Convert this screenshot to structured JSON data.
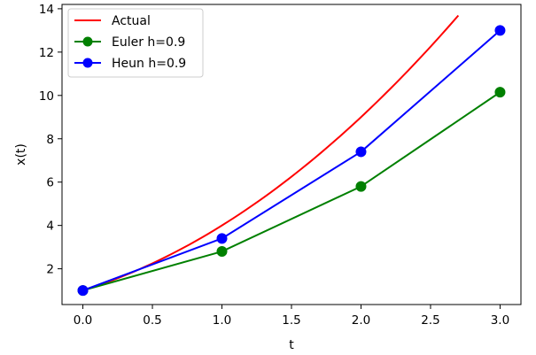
{
  "chart_data": {
    "type": "line",
    "xlabel": "t",
    "ylabel": "x(t)",
    "xlim": [
      -0.15,
      3.15
    ],
    "ylim": [
      0.35,
      14.2
    ],
    "xticks": [
      0.0,
      0.5,
      1.0,
      1.5,
      2.0,
      2.5,
      3.0
    ],
    "xtick_labels": [
      "0.0",
      "0.5",
      "1.0",
      "1.5",
      "2.0",
      "2.5",
      "3.0"
    ],
    "yticks": [
      2,
      4,
      6,
      8,
      10,
      12,
      14
    ],
    "ytick_labels": [
      "2",
      "4",
      "6",
      "8",
      "10",
      "12",
      "14"
    ],
    "grid": false,
    "legend_position": "top-left",
    "series": [
      {
        "name": "Actual",
        "color": "#ff0000",
        "markers": false,
        "x": [
          0.0,
          0.3,
          0.6,
          0.9,
          1.2,
          1.5,
          1.8,
          2.1,
          2.4,
          2.7
        ],
        "y": [
          1.0,
          1.69,
          2.56,
          3.61,
          4.84,
          6.25,
          7.84,
          9.61,
          11.56,
          13.69
        ]
      },
      {
        "name": "Euler h=0.9",
        "color": "#008000",
        "markers": true,
        "x": [
          0.0,
          1.0,
          2.0,
          3.0
        ],
        "y": [
          1.0,
          2.8,
          5.8,
          10.15
        ]
      },
      {
        "name": "Heun h=0.9",
        "color": "#0000ff",
        "markers": true,
        "x": [
          0.0,
          1.0,
          2.0,
          3.0
        ],
        "y": [
          1.0,
          3.4,
          7.4,
          13.0
        ]
      }
    ]
  }
}
